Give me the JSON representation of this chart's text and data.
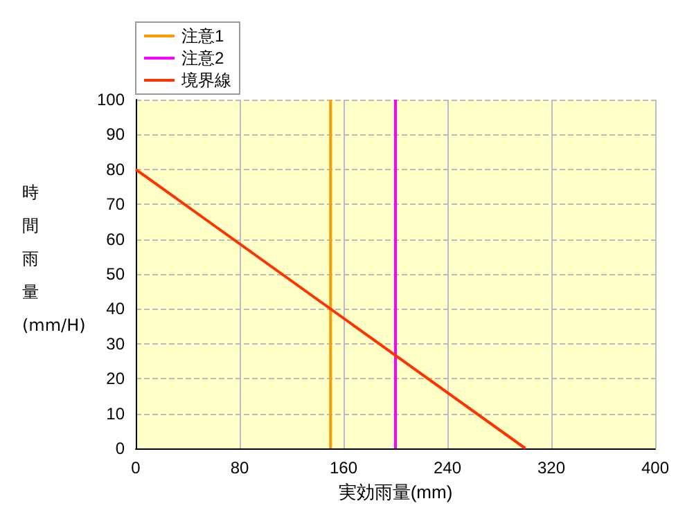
{
  "chart_data": {
    "type": "line",
    "xlabel": "実効雨量(mm)",
    "ylabel": "時間雨量(mm/H)",
    "xlim": [
      0,
      400
    ],
    "xticks": [
      0,
      80,
      160,
      240,
      320,
      400
    ],
    "ylim": [
      0,
      100
    ],
    "yticks": [
      0,
      10,
      20,
      30,
      40,
      50,
      60,
      70,
      80,
      90,
      100
    ],
    "grid": true,
    "legend": "top left",
    "marker": "none",
    "line_style": "solid",
    "series": [
      {
        "name": "注意1",
        "color": "#ff9900",
        "x": [
          150,
          150
        ],
        "values": [
          0,
          100
        ]
      },
      {
        "name": "注意2",
        "color": "#ff00ff",
        "x": [
          200,
          200
        ],
        "values": [
          0,
          100
        ]
      },
      {
        "name": "境界線",
        "color": "#ff3300",
        "x": [
          0,
          300
        ],
        "values": [
          80,
          0
        ]
      }
    ]
  }
}
